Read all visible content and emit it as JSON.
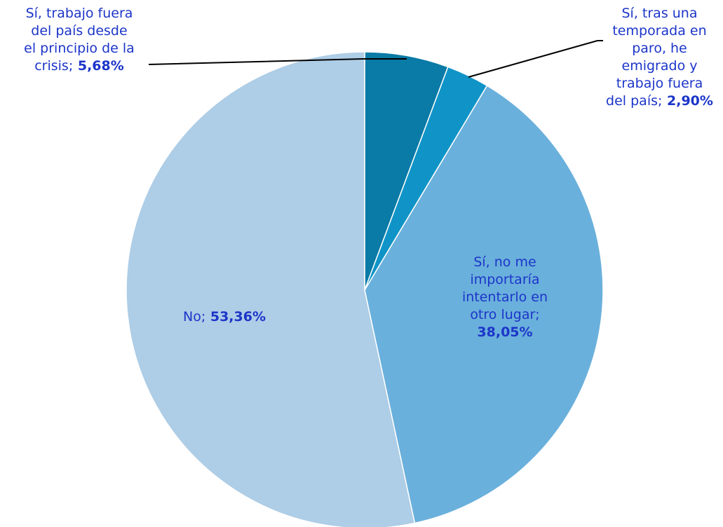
{
  "chart_data": {
    "type": "pie",
    "slices": [
      {
        "label_lines": [
          "Sí, trabajo fuera",
          "del país desde",
          "el principio de la",
          "crisis;"
        ],
        "value_text": "5,68%",
        "value": 5.68,
        "color": "#0a7aa6"
      },
      {
        "label_lines": [
          "Sí, tras una",
          "temporada en",
          "paro, he",
          "emigrado y",
          "trabajo fuera",
          "del país;"
        ],
        "value_text": "2,90%",
        "value": 2.9,
        "color": "#1094c7"
      },
      {
        "label_lines": [
          "Sí, no me",
          "importaría",
          "intentarlo en",
          "otro lugar;"
        ],
        "value_text": "38,05%",
        "value": 38.05,
        "color": "#6ab0dc"
      },
      {
        "label_lines": [
          "No;"
        ],
        "value_text": "53,36%",
        "value": 53.36,
        "color": "#aecde6"
      }
    ],
    "start_angle": "12 o'clock",
    "direction": "clockwise",
    "label_color": "#1c35c9"
  }
}
